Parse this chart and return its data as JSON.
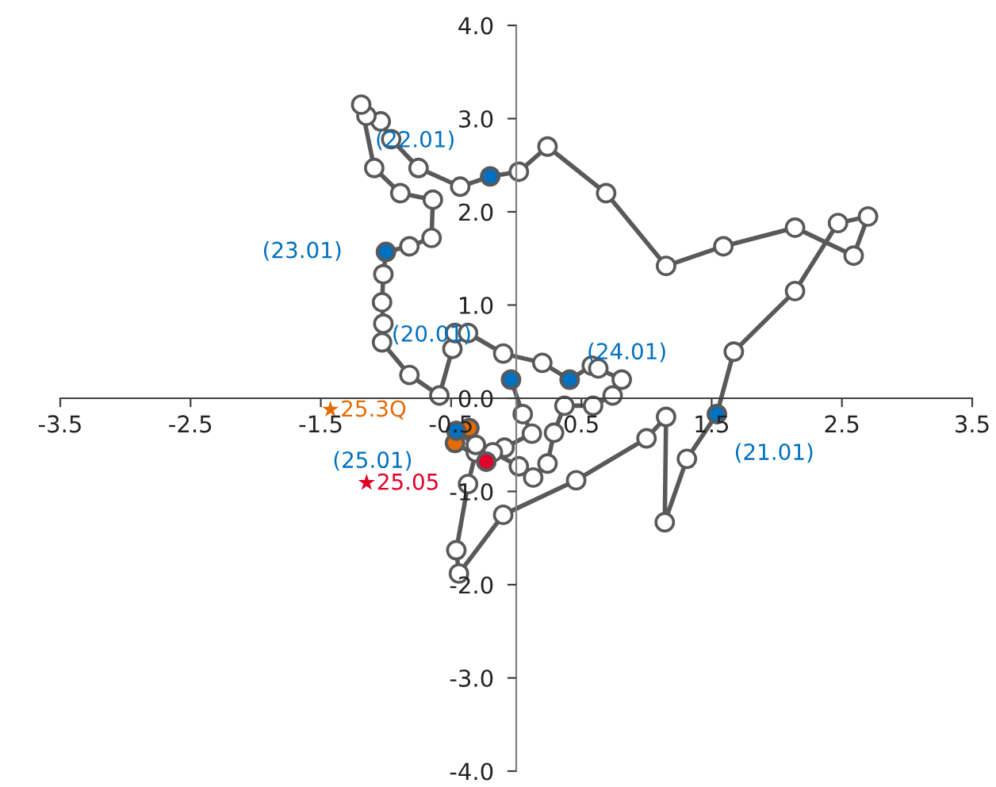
{
  "chart_data": {
    "type": "line",
    "xlim": [
      -3.5,
      3.5
    ],
    "ylim": [
      -4.0,
      4.0
    ],
    "xticks": [
      -3.5,
      -2.5,
      -1.5,
      -0.5,
      0.5,
      1.5,
      2.5,
      3.5
    ],
    "yticks": [
      {
        "value": -4,
        "label": "-4.0"
      },
      {
        "value": -3,
        "label": "-3.0"
      },
      {
        "value": -2,
        "label": "-2.0"
      },
      {
        "value": -1,
        "label": "-1.0"
      },
      {
        "value": 0,
        "label": "0.0"
      },
      {
        "value": 1,
        "label": "1.0"
      },
      {
        "value": 2,
        "label": "2.0"
      },
      {
        "value": 3,
        "label": "3.0"
      },
      {
        "value": 4,
        "label": "4.0"
      }
    ],
    "grid": false,
    "legend": false,
    "series": [
      {
        "color": "#595959",
        "marker": "circle",
        "line_style": "solid",
        "x": [
          -0.04,
          0.05,
          0.12,
          -0.09,
          -0.31,
          -0.37,
          -0.46,
          -0.44,
          -0.1,
          0.46,
          1.0,
          1.15,
          1.14,
          1.31,
          1.54,
          1.67,
          2.14,
          2.47,
          2.7,
          2.59,
          2.14,
          1.59,
          1.15,
          0.69,
          0.24,
          0.02,
          -0.2,
          -0.43,
          -0.75,
          -0.96,
          -1.04,
          -1.15,
          -1.19,
          -1.09,
          -0.89,
          -0.64,
          -0.65,
          -0.82,
          -1.0,
          -1.02,
          -1.03,
          -1.02,
          -1.03,
          -0.82,
          -0.59,
          -0.49,
          -0.47,
          -0.37,
          -0.1,
          0.2,
          0.41,
          0.58,
          0.63,
          0.81,
          0.74,
          0.59,
          0.37,
          0.29,
          0.24,
          0.13,
          0.02,
          -0.18,
          -0.31,
          -0.46,
          -0.36,
          -0.47,
          -0.23
        ],
        "values": [
          0.2,
          -0.17,
          -0.38,
          -0.53,
          -0.58,
          -0.92,
          -1.63,
          -1.88,
          -1.25,
          -0.88,
          -0.43,
          -0.2,
          -1.33,
          -0.65,
          -0.17,
          0.5,
          1.15,
          1.88,
          1.95,
          1.53,
          1.83,
          1.63,
          1.42,
          2.2,
          2.7,
          2.43,
          2.38,
          2.27,
          2.47,
          2.78,
          2.97,
          3.03,
          3.15,
          2.47,
          2.2,
          2.13,
          1.72,
          1.63,
          1.57,
          1.33,
          1.03,
          0.8,
          0.6,
          0.25,
          0.03,
          0.53,
          0.7,
          0.7,
          0.48,
          0.38,
          0.2,
          0.35,
          0.32,
          0.2,
          0.03,
          -0.08,
          -0.08,
          -0.37,
          -0.7,
          -0.85,
          -0.73,
          -0.58,
          -0.5,
          -0.35,
          -0.32,
          -0.48,
          -0.68
        ]
      },
      {
        "type": "scatter",
        "color": "#0070c0",
        "marker": "circle",
        "x": [
          -0.04,
          1.54,
          -0.2,
          -1.0,
          0.41,
          -0.46
        ],
        "values": [
          0.2,
          -0.17,
          2.38,
          1.57,
          0.2,
          -0.35
        ]
      },
      {
        "type": "scatter",
        "color": "#e36c09",
        "marker": "circle",
        "x": [
          -0.36,
          -0.47
        ],
        "values": [
          -0.32,
          -0.48
        ]
      },
      {
        "type": "scatter",
        "color": "#e0002a",
        "marker": "circle",
        "x": [
          -0.23
        ],
        "values": [
          -0.68
        ]
      }
    ],
    "annotations": [
      {
        "text": "(20.01)",
        "x": -0.04,
        "y": 0.2
      },
      {
        "text": "(21.01)",
        "x": 1.54,
        "y": -0.17
      },
      {
        "text": "(22.01)",
        "x": -0.2,
        "y": 2.38
      },
      {
        "text": "(23.01)",
        "x": -1.0,
        "y": 1.57
      },
      {
        "text": "(24.01)",
        "x": 0.41,
        "y": 0.2
      },
      {
        "text": "(25.01)",
        "x": -0.46,
        "y": -0.35
      },
      {
        "text": "★25.3Q",
        "x": -0.36,
        "y": -0.32
      },
      {
        "text": "★25.05",
        "x": -0.23,
        "y": -0.68
      }
    ]
  }
}
